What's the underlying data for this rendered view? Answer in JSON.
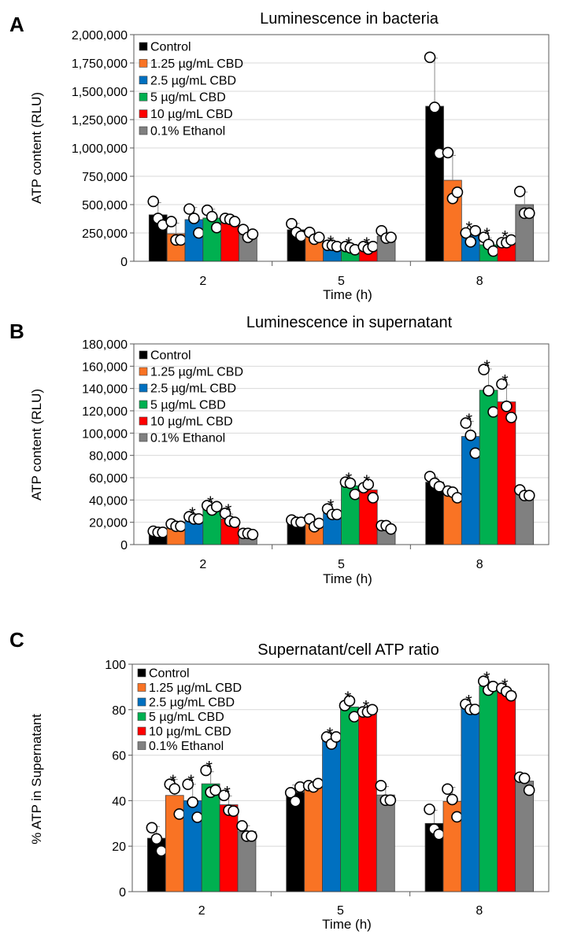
{
  "chart_data": [
    {
      "panel": "A",
      "type": "bar",
      "title": "Luminescence in bacteria",
      "xlabel": "Time (h)",
      "ylabel": "ATP content (RLU)",
      "categories": [
        "2",
        "5",
        "8"
      ],
      "ylim": [
        0,
        2000000
      ],
      "yticks": [
        "0",
        "250,000",
        "500,000",
        "750,000",
        "1,000,000",
        "1,250,000",
        "1,500,000",
        "1,750,000",
        "2,000,000"
      ],
      "grid": true,
      "legend_position": "top-left",
      "significance_marker": "*",
      "series": [
        {
          "name": "Control",
          "color": "#000000",
          "values": [
            410000,
            278000,
            1368000
          ],
          "points": [
            [
              528000,
              378000,
              320000
            ],
            [
              331000,
              255000,
              222000
            ],
            [
              1800000,
              1358000,
              952000
            ]
          ],
          "significant": [
            false,
            false,
            false
          ]
        },
        {
          "name": "1.25 µg/mL CBD",
          "color": "#f97324",
          "values": [
            243000,
            215000,
            715000
          ],
          "points": [
            [
              350000,
              188000,
              188000
            ],
            [
              255000,
              195000,
              211000
            ],
            [
              959000,
              554000,
              609000
            ]
          ],
          "significant": [
            false,
            false,
            false
          ]
        },
        {
          "name": "2.5 µg/mL CBD",
          "color": "#0070c0",
          "values": [
            368000,
            132000,
            229000
          ],
          "points": [
            [
              461000,
              378000,
              250000
            ],
            [
              141000,
              141000,
              130000
            ],
            [
              250000,
              171000,
              269000
            ]
          ],
          "significant": [
            false,
            true,
            true
          ]
        },
        {
          "name": "5 µg/mL CBD",
          "color": "#00b050",
          "values": [
            382000,
            110000,
            146000
          ],
          "points": [
            [
              450000,
              394000,
              297000
            ],
            [
              130000,
              118000,
              102000
            ],
            [
              211000,
              148000,
              90000
            ]
          ],
          "significant": [
            false,
            true,
            true
          ]
        },
        {
          "name": "10 µg/mL CBD",
          "color": "#ff0000",
          "values": [
            340000,
            104000,
            167000
          ],
          "points": [
            [
              378000,
              370000,
              350000
            ],
            [
              130000,
              107000,
              130000
            ],
            [
              164000,
              164000,
              188000
            ]
          ],
          "significant": [
            false,
            true,
            true
          ]
        },
        {
          "name": "0.1% Ethanol",
          "color": "#808080",
          "values": [
            236000,
            222000,
            500000
          ],
          "points": [
            [
              280000,
              211000,
              239000
            ],
            [
              269000,
              204000,
              211000
            ],
            [
              616000,
              424000,
              424000
            ]
          ],
          "significant": [
            false,
            false,
            false
          ]
        }
      ]
    },
    {
      "panel": "B",
      "type": "bar",
      "title": "Luminescence in supernatant",
      "xlabel": "Time (h)",
      "ylabel": "ATP content (RLU)",
      "categories": [
        "2",
        "5",
        "8"
      ],
      "ylim": [
        0,
        180000
      ],
      "yticks": [
        "0",
        "20,000",
        "40,000",
        "60,000",
        "80,000",
        "100,000",
        "120,000",
        "140,000",
        "160,000",
        "180,000"
      ],
      "grid": true,
      "legend_position": "top-left",
      "significance_marker": "*",
      "series": [
        {
          "name": "Control",
          "color": "#000000",
          "values": [
            11000,
            20500,
            56000
          ],
          "points": [
            [
              12000,
              11000,
              11000
            ],
            [
              22000,
              20000,
              20000
            ],
            [
              61000,
              55000,
              52000
            ]
          ],
          "significant": [
            false,
            false,
            false
          ]
        },
        {
          "name": "1.25 µg/mL CBD",
          "color": "#f97324",
          "values": [
            17000,
            19000,
            46000
          ],
          "points": [
            [
              18500,
              16400,
              16400
            ],
            [
              23000,
              16000,
              19000
            ],
            [
              48000,
              47000,
              42000
            ]
          ],
          "significant": [
            false,
            false,
            false
          ]
        },
        {
          "name": "2.5 µg/mL CBD",
          "color": "#0070c0",
          "values": [
            24000,
            28600,
            97000
          ],
          "points": [
            [
              25000,
              23000,
              23000
            ],
            [
              32000,
              27000,
              27000
            ],
            [
              109000,
              98000,
              82000
            ]
          ],
          "significant": [
            true,
            true,
            true
          ]
        },
        {
          "name": "5 µg/mL CBD",
          "color": "#00b050",
          "values": [
            33000,
            52800,
            138500
          ],
          "points": [
            [
              35000,
              31000,
              34000
            ],
            [
              56000,
              55000,
              45000
            ],
            [
              157000,
              138000,
              119000
            ]
          ],
          "significant": [
            true,
            true,
            true
          ]
        },
        {
          "name": "10 µg/mL CBD",
          "color": "#ff0000",
          "values": [
            23000,
            49000,
            128000
          ],
          "points": [
            [
              28000,
              21000,
              20000
            ],
            [
              51000,
              54000,
              42000
            ],
            [
              144000,
              124000,
              114000
            ]
          ],
          "significant": [
            true,
            true,
            true
          ]
        },
        {
          "name": "0.1% Ethanol",
          "color": "#808080",
          "values": [
            9000,
            16000,
            45000
          ],
          "points": [
            [
              10000,
              10000,
              9000
            ],
            [
              17000,
              17000,
              14000
            ],
            [
              49000,
              44000,
              44000
            ]
          ],
          "significant": [
            false,
            false,
            false
          ]
        }
      ]
    },
    {
      "panel": "C",
      "type": "bar",
      "title": "Supernatant/cell ATP ratio",
      "xlabel": "Time (h)",
      "ylabel": "% ATP in Supernatant",
      "categories": [
        "2",
        "5",
        "8"
      ],
      "ylim": [
        0,
        100
      ],
      "yticks": [
        "0",
        "20",
        "40",
        "60",
        "80",
        "100"
      ],
      "grid": true,
      "legend_position": "top-left",
      "significance_marker": "*",
      "series": [
        {
          "name": "Control",
          "color": "#000000",
          "values": [
            23.5,
            43.7,
            30
          ],
          "points": [
            [
              28.1,
              23.2,
              17.9
            ],
            [
              43.5,
              39.7,
              46.0
            ],
            [
              36.2,
              27.5,
              25.2
            ]
          ],
          "significant": [
            false,
            false,
            false
          ]
        },
        {
          "name": "1.25 µg/mL CBD",
          "color": "#f97324",
          "values": [
            42.3,
            46,
            39.7
          ],
          "points": [
            [
              47.2,
              45.2,
              34.1
            ],
            [
              46.6,
              46.0,
              47.5
            ],
            [
              45.1,
              40.5,
              32.9
            ]
          ],
          "significant": [
            true,
            false,
            false
          ]
        },
        {
          "name": "2.5  µg/mL CBD",
          "color": "#0070c0",
          "values": [
            40,
            67,
            81
          ],
          "points": [
            [
              47.2,
              39.3,
              32.7
            ],
            [
              68.0,
              64.9,
              68.0
            ],
            [
              82.4,
              80.1,
              80.1
            ]
          ],
          "significant": [
            true,
            true,
            true
          ]
        },
        {
          "name": "5  µg/mL CBD",
          "color": "#00b050",
          "values": [
            47.4,
            81.2,
            90.5
          ],
          "points": [
            [
              53.3,
              43.7,
              44.6
            ],
            [
              81.8,
              83.9,
              76.9
            ],
            [
              92.5,
              88.6,
              90.2
            ]
          ],
          "significant": [
            true,
            true,
            true
          ]
        },
        {
          "name": "10  µg/mL CBD",
          "color": "#ff0000",
          "values": [
            38.2,
            78.6,
            87.9
          ],
          "points": [
            [
              42.3,
              35.8,
              35.4
            ],
            [
              79.0,
              79.0,
              80.0
            ],
            [
              89.4,
              88.0,
              86.1
            ]
          ],
          "significant": [
            true,
            true,
            true
          ]
        },
        {
          "name": "0.1% Ethanol",
          "color": "#808080",
          "values": [
            26.4,
            42.5,
            48.6
          ],
          "points": [
            [
              28.9,
              24.4,
              24.4
            ],
            [
              46.6,
              40.2,
              40.2
            ],
            [
              50.3,
              49.8,
              44.6
            ]
          ],
          "significant": [
            false,
            false,
            false
          ]
        }
      ]
    }
  ]
}
